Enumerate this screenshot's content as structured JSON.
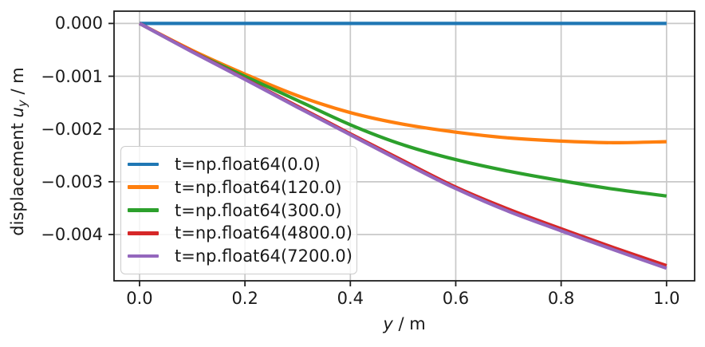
{
  "figure": {
    "background_color": "#ffffff",
    "text_color": "#1a1a1a",
    "spine_color": "#1f1f1f",
    "grid_color": "#c8c8c8",
    "legend_border_color": "#cccccc"
  },
  "axes": {
    "xlabel": {
      "var": "y",
      "suffix": " / m"
    },
    "ylabel": {
      "prefix": "displacement ",
      "var": "u",
      "sub": "y",
      "suffix": " / m"
    }
  },
  "chart_data": {
    "type": "line",
    "title": "",
    "xlabel": "y / m",
    "ylabel": "displacement u_y / m",
    "grid": true,
    "legend_position": "lower left inside axes",
    "xlim": [
      -0.0484,
      1.0533
    ],
    "ylim": [
      -0.004877,
      0.000233
    ],
    "x_ticks": {
      "values": [
        0.0,
        0.2,
        0.4,
        0.6,
        0.8,
        1.0
      ],
      "labels": [
        "0.0",
        "0.2",
        "0.4",
        "0.6",
        "0.8",
        "1.0"
      ]
    },
    "y_ticks": {
      "values": [
        0.0,
        -0.001,
        -0.002,
        -0.003,
        -0.004
      ],
      "labels": [
        "0.000",
        "−0.001",
        "−0.002",
        "−0.003",
        "−0.004"
      ]
    },
    "x": [
      0.0,
      0.1,
      0.2,
      0.3,
      0.4,
      0.5,
      0.6,
      0.7,
      0.8,
      0.9,
      1.0
    ],
    "series": [
      {
        "name": "t=np.float64(0.0)",
        "color": "#1f77b4",
        "values": [
          0,
          0,
          0,
          0,
          0,
          0,
          0,
          0,
          0,
          0,
          0
        ]
      },
      {
        "name": "t=np.float64(120.0)",
        "color": "#ff7f0e",
        "values": [
          0,
          -0.00051,
          -0.00096,
          -0.00137,
          -0.00169,
          -0.00191,
          -0.00206,
          -0.00217,
          -0.00223,
          -0.00226,
          -0.00224
        ]
      },
      {
        "name": "t=np.float64(300.0)",
        "color": "#2ca02c",
        "values": [
          0,
          -0.00053,
          -0.001,
          -0.00146,
          -0.00192,
          -0.0023,
          -0.00258,
          -0.0028,
          -0.00298,
          -0.00314,
          -0.00327
        ]
      },
      {
        "name": "t=np.float64(4800.0)",
        "color": "#d62728",
        "values": [
          0,
          -0.00053,
          -0.00105,
          -0.00157,
          -0.00209,
          -0.0026,
          -0.0031,
          -0.00352,
          -0.00389,
          -0.00425,
          -0.00459
        ]
      },
      {
        "name": "t=np.float64(7200.0)",
        "color": "#9467bd",
        "values": [
          0,
          -0.00054,
          -0.00106,
          -0.00159,
          -0.00211,
          -0.00263,
          -0.00313,
          -0.00356,
          -0.00393,
          -0.00429,
          -0.00464
        ]
      }
    ]
  }
}
